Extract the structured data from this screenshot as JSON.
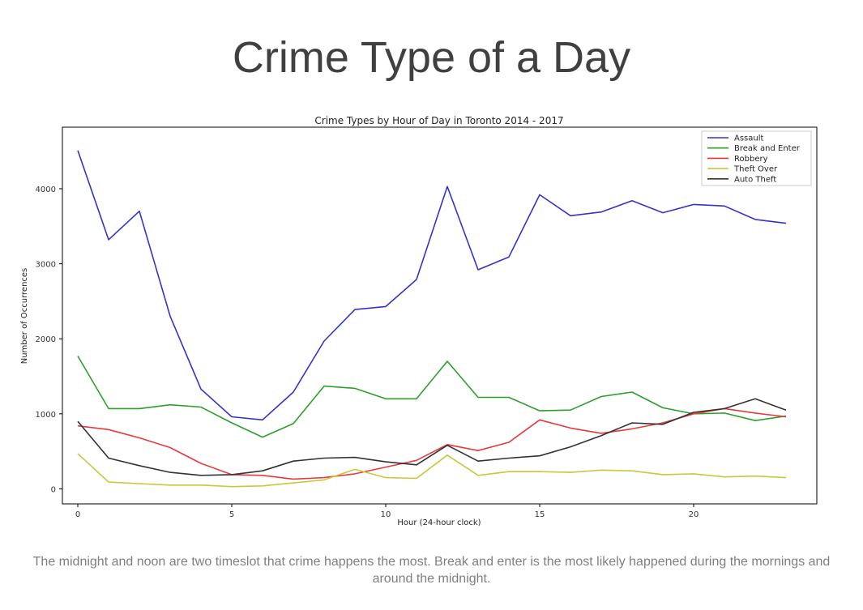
{
  "slide": {
    "title": "Crime Type of a Day",
    "caption": "The midnight and noon are two timeslot that crime happens the most. Break and enter is the most likely happened during the mornings and around the midnight."
  },
  "chart_data": {
    "type": "line",
    "title": "Crime Types by Hour of Day in Toronto 2014 - 2017",
    "xlabel": "Hour (24-hour clock)",
    "ylabel": "Number of Occurrences",
    "xlim": [
      -0.5,
      24
    ],
    "ylim": [
      -200,
      4820
    ],
    "xticks": [
      0,
      5,
      10,
      15,
      20
    ],
    "yticks": [
      0,
      1000,
      2000,
      3000,
      4000
    ],
    "grid": false,
    "legend": "top-right",
    "x": [
      0,
      1,
      2,
      3,
      4,
      5,
      6,
      7,
      8,
      9,
      10,
      11,
      12,
      13,
      14,
      15,
      16,
      17,
      18,
      19,
      20,
      21,
      22,
      23
    ],
    "series": [
      {
        "name": "Assault",
        "color": "#3333cc",
        "values": [
          4510,
          3320,
          3700,
          2300,
          1330,
          960,
          920,
          1290,
          1970,
          2390,
          2430,
          2790,
          4030,
          2920,
          3090,
          3920,
          3640,
          3690,
          3840,
          3680,
          3790,
          3770,
          3590,
          3540
        ]
      },
      {
        "name": "Break and Enter",
        "color": "#2ca02c",
        "values": [
          1770,
          1070,
          1070,
          1120,
          1090,
          880,
          690,
          870,
          1370,
          1340,
          1200,
          1200,
          1700,
          1220,
          1220,
          1040,
          1050,
          1230,
          1290,
          1080,
          1000,
          1010,
          910,
          970
        ]
      },
      {
        "name": "Robbery",
        "color": "#e8393b",
        "values": [
          840,
          790,
          680,
          550,
          340,
          190,
          180,
          130,
          150,
          200,
          290,
          380,
          590,
          510,
          620,
          920,
          810,
          740,
          800,
          880,
          1000,
          1070,
          1010,
          960
        ]
      },
      {
        "name": "Theft Over",
        "color": "#c8c83a",
        "values": [
          470,
          90,
          70,
          50,
          50,
          30,
          40,
          80,
          120,
          260,
          150,
          140,
          450,
          180,
          230,
          230,
          220,
          250,
          240,
          190,
          200,
          160,
          170,
          150
        ]
      },
      {
        "name": "Auto Theft",
        "color": "#333333",
        "values": [
          900,
          410,
          310,
          220,
          180,
          190,
          240,
          370,
          410,
          420,
          360,
          320,
          580,
          370,
          410,
          440,
          560,
          710,
          880,
          860,
          1020,
          1070,
          1200,
          1050
        ]
      }
    ]
  }
}
